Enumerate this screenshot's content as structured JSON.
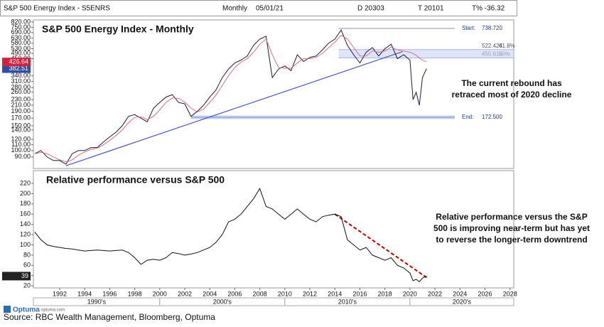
{
  "chart_data": [
    {
      "type": "line",
      "header": [
        "S&P 500 Energy Index - S5ENRS",
        "Monthly",
        "05/01/21",
        "D 20303",
        "T 20101",
        "T% -36.32"
      ],
      "title": "S&P 500 Energy Index - Monthly",
      "annotation": [
        "The current rebound has",
        "retraced most of 2020 decline"
      ],
      "log_scale": true,
      "xlim": [
        1989.9,
        2028.3
      ],
      "ylim": [
        74.6,
        849
      ],
      "yticks": [
        {
          "value": 820,
          "label": "820.00"
        },
        {
          "value": 750,
          "label": "750.00"
        },
        {
          "value": 690,
          "label": "690.00"
        },
        {
          "value": 630,
          "label": "630.00"
        },
        {
          "value": 580,
          "label": "580.00"
        },
        {
          "value": 530,
          "label": "530.00"
        },
        {
          "value": 490,
          "label": "490.00"
        },
        {
          "value": 450,
          "label": "450.00"
        },
        {
          "value": 340,
          "label": "340.00"
        },
        {
          "value": 310,
          "label": "310.00"
        },
        {
          "value": 280,
          "label": "280.00"
        },
        {
          "value": 260,
          "label": "260.00"
        },
        {
          "value": 230,
          "label": "230.00"
        },
        {
          "value": 210,
          "label": "210.00"
        },
        {
          "value": 190,
          "label": "190.00"
        },
        {
          "value": 170,
          "label": "170.00"
        },
        {
          "value": 150,
          "label": "150.00"
        },
        {
          "value": 140,
          "label": "140.00"
        },
        {
          "value": 120,
          "label": "120.00"
        },
        {
          "value": 110,
          "label": "110.00"
        },
        {
          "value": 100,
          "label": "100.00"
        },
        {
          "value": 90,
          "label": "90.00"
        }
      ],
      "x": [
        1990,
        1990.5,
        1991,
        1991.5,
        1992,
        1992.5,
        1993,
        1993.5,
        1994,
        1994.5,
        1995,
        1995.5,
        1996,
        1996.5,
        1997,
        1997.5,
        1998,
        1998.5,
        1999,
        1999.5,
        2000,
        2000.5,
        2001,
        2001.5,
        2002,
        2002.5,
        2003,
        2003.5,
        2004,
        2004.5,
        2005,
        2005.5,
        2006,
        2006.5,
        2007,
        2007.5,
        2008,
        2008.5,
        2009,
        2009.5,
        2010,
        2010.5,
        2011,
        2011.5,
        2012,
        2012.5,
        2013,
        2013.5,
        2014,
        2014.5,
        2015,
        2015.5,
        2016,
        2016.5,
        2017,
        2017.5,
        2018,
        2018.5,
        2019,
        2019.5,
        2020,
        2020.25,
        2020.5,
        2020.75,
        2021,
        2021.33
      ],
      "series": [
        {
          "color": "#1a1a4a",
          "last_color": "#2e4fa3",
          "last_label": "382.51",
          "values": [
            95,
            100,
            90,
            85,
            85,
            80,
            95,
            100,
            100,
            105,
            105,
            115,
            125,
            135,
            150,
            175,
            180,
            170,
            160,
            200,
            220,
            240,
            250,
            220,
            215,
            175,
            190,
            210,
            240,
            270,
            330,
            380,
            420,
            440,
            470,
            560,
            620,
            650,
            330,
            380,
            400,
            370,
            480,
            430,
            460,
            470,
            520,
            580,
            620,
            720,
            560,
            480,
            420,
            500,
            540,
            470,
            530,
            570,
            450,
            480,
            440,
            230,
            260,
            210,
            330,
            382.51
          ]
        },
        {
          "color": "#e06070",
          "last_color": "#d8203a",
          "last_label": "426.64",
          "values": [
            95,
            97,
            95,
            90,
            86,
            83,
            86,
            93,
            98,
            102,
            104,
            110,
            118,
            128,
            140,
            158,
            172,
            174,
            166,
            175,
            195,
            220,
            237,
            235,
            222,
            200,
            188,
            197,
            220,
            248,
            290,
            340,
            390,
            425,
            450,
            500,
            570,
            620,
            480,
            390,
            385,
            385,
            420,
            450,
            450,
            460,
            490,
            540,
            590,
            660,
            620,
            540,
            470,
            470,
            510,
            500,
            510,
            545,
            520,
            510,
            500,
            490,
            475,
            455,
            440,
            426.64
          ]
        }
      ],
      "trendline": {
        "from": [
          1992.5,
          78
        ],
        "to": [
          2019.4,
          505
        ],
        "color": "#4a55c8"
      },
      "levels": [
        {
          "name": "Start:",
          "value": 738.72,
          "label": "738.720",
          "from": 2014.3
        },
        {
          "name": "End:",
          "value": 172.5,
          "label": "172.500",
          "from": 2002.5
        }
      ],
      "retracements": [
        {
          "value": 522.424,
          "label": "522.424",
          "pct": "61.8%"
        },
        {
          "value": 455.61,
          "label": "455.610",
          "pct": "50%"
        }
      ]
    },
    {
      "type": "line",
      "title": "Relative performance versus S&P 500",
      "annotation": [
        "Relative performance versus the S&P",
        "500 is improving near-term but has yet",
        "to reverse the longer-term downtrend"
      ],
      "log_scale": false,
      "xlim": [
        1989.9,
        2028.3
      ],
      "ylim": [
        16,
        245
      ],
      "yticks": [
        220,
        200,
        180,
        160,
        140,
        120,
        100,
        80,
        60,
        40,
        20
      ],
      "xticks": [
        1992,
        1994,
        1996,
        1998,
        2000,
        2002,
        2004,
        2006,
        2008,
        2010,
        2012,
        2014,
        2016,
        2018,
        2020,
        2022,
        2024,
        2026,
        2028
      ],
      "eras": [
        {
          "label": "1990's",
          "from": 1989.9,
          "to": 2000
        },
        {
          "label": "2000's",
          "from": 2000,
          "to": 2010
        },
        {
          "label": "2010's",
          "from": 2010,
          "to": 2020
        },
        {
          "label": "2020's",
          "from": 2020,
          "to": 2028.3
        }
      ],
      "x": [
        1990,
        1990.5,
        1991,
        1991.5,
        1992,
        1992.5,
        1993,
        1993.5,
        1994,
        1994.5,
        1995,
        1995.5,
        1996,
        1996.5,
        1997,
        1997.5,
        1998,
        1998.5,
        1999,
        1999.5,
        2000,
        2000.5,
        2001,
        2001.5,
        2002,
        2002.5,
        2003,
        2003.5,
        2004,
        2004.5,
        2005,
        2005.5,
        2006,
        2006.5,
        2007,
        2007.5,
        2008,
        2008.5,
        2009,
        2009.5,
        2010,
        2010.5,
        2011,
        2011.5,
        2012,
        2012.5,
        2013,
        2013.5,
        2014,
        2014.5,
        2015,
        2015.5,
        2016,
        2016.5,
        2017,
        2017.5,
        2018,
        2018.5,
        2019,
        2019.5,
        2020,
        2020.25,
        2020.5,
        2020.75,
        2021,
        2021.33
      ],
      "series": [
        {
          "color": "#111111",
          "last_color": "#222222",
          "last_label": "39",
          "values": [
            125,
            110,
            100,
            97,
            95,
            93,
            92,
            90,
            88,
            89,
            90,
            89,
            88,
            89,
            90,
            85,
            75,
            62,
            70,
            72,
            70,
            75,
            85,
            83,
            80,
            82,
            85,
            90,
            95,
            105,
            120,
            145,
            150,
            160,
            175,
            190,
            210,
            175,
            170,
            160,
            150,
            160,
            170,
            160,
            150,
            145,
            155,
            158,
            160,
            155,
            110,
            100,
            90,
            95,
            80,
            75,
            70,
            75,
            60,
            55,
            45,
            30,
            33,
            28,
            35,
            39
          ]
        }
      ],
      "trendline": {
        "from": [
          2014,
          160
        ],
        "to": [
          2021.47,
          34
        ],
        "color": "#c00000",
        "dashed": true
      }
    }
  ],
  "footer": {
    "logo": "Optuma",
    "site": "optuma.com",
    "source": "Source: RBC Wealth Management, Bloomberg, Optuma"
  }
}
